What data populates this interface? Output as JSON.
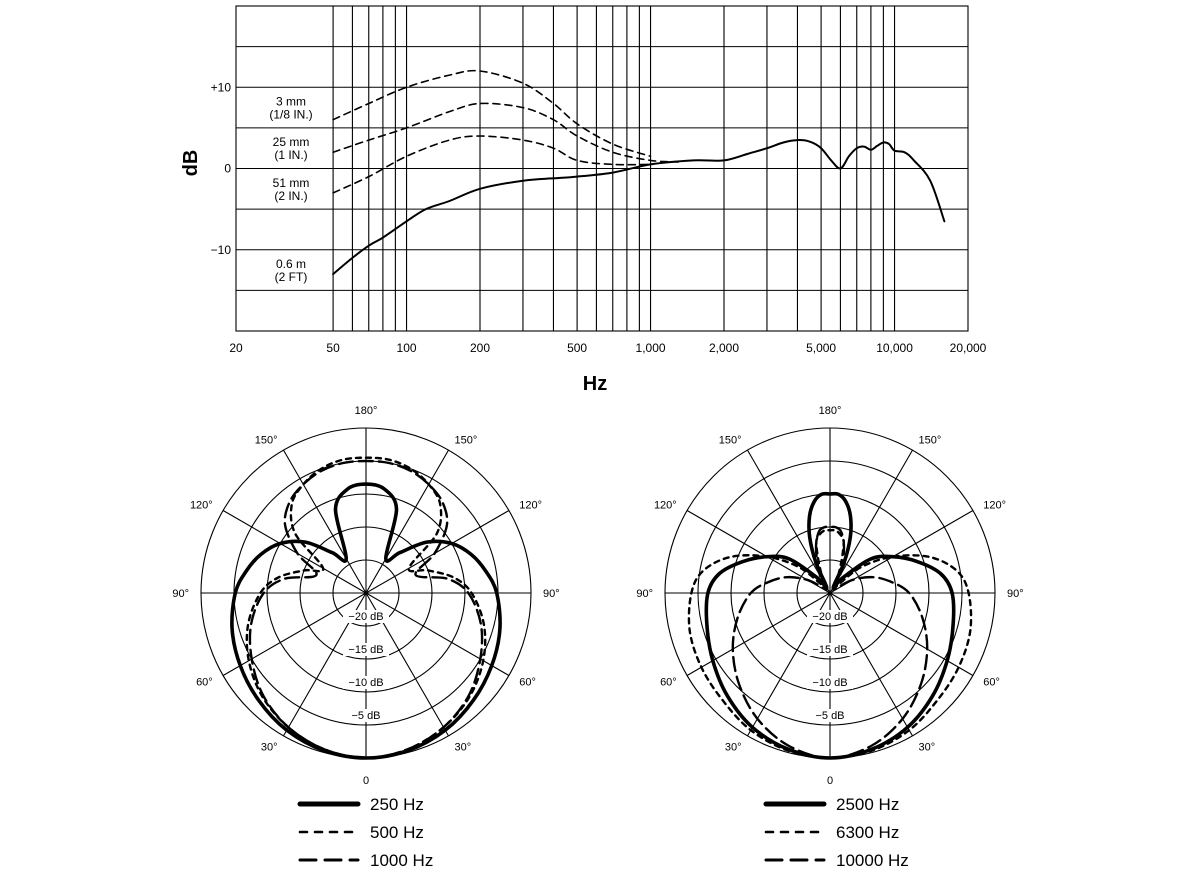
{
  "chart_data": [
    {
      "type": "line",
      "xlabel": "Hz",
      "ylabel": "dB",
      "x_scale": "log",
      "xlim": [
        20,
        20000
      ],
      "ylim": [
        -20,
        20
      ],
      "x_ticks": [
        "20",
        "50",
        "100",
        "200",
        "500",
        "1,000",
        "2,000",
        "5,000",
        "10,000",
        "20,000"
      ],
      "x_tick_values": [
        20,
        50,
        100,
        200,
        500,
        1000,
        2000,
        5000,
        10000,
        20000
      ],
      "y_ticks": [
        {
          "label": "+10",
          "value": 10
        },
        {
          "label": "0",
          "value": 0
        },
        {
          "label": "−10",
          "value": -10
        }
      ],
      "grid": true,
      "annotations": [
        {
          "line1": "3 mm",
          "line2": "(1/8 IN.)",
          "y": 7.5
        },
        {
          "line1": "25 mm",
          "line2": "(1 IN.)",
          "y": 2.5
        },
        {
          "line1": "51 mm",
          "line2": "(2 IN.)",
          "y": -2.5
        },
        {
          "line1": "0.6 m",
          "line2": "(2 FT)",
          "y": -12.5
        }
      ],
      "series": [
        {
          "style": "solid",
          "x": [
            50,
            60,
            70,
            80,
            100,
            120,
            150,
            200,
            300,
            400,
            500,
            700,
            1000,
            1500,
            2000,
            2500,
            3000,
            3500,
            4000,
            4500,
            5000,
            5500,
            6000,
            6500,
            7000,
            7500,
            8000,
            8500,
            9000,
            9500,
            10000,
            11000,
            12000,
            14000,
            16000
          ],
          "y": [
            -13,
            -11,
            -9.5,
            -8.5,
            -6.5,
            -5,
            -4,
            -2.5,
            -1.5,
            -1.2,
            -1,
            -0.5,
            0.5,
            1,
            1,
            1.8,
            2.5,
            3.2,
            3.5,
            3.3,
            2.5,
            1,
            0,
            1.5,
            2.5,
            2.7,
            2.3,
            2.8,
            3.2,
            3,
            2.2,
            2,
            1,
            -1.5,
            -6.5
          ]
        },
        {
          "style": "dashed",
          "x": [
            50,
            70,
            100,
            150,
            200,
            300,
            400,
            500,
            700,
            1000
          ],
          "y": [
            6,
            8,
            10,
            11.5,
            12,
            10.5,
            8,
            5.5,
            3,
            1.5
          ]
        },
        {
          "style": "dashed",
          "x": [
            50,
            70,
            100,
            150,
            200,
            300,
            400,
            500,
            700,
            1000,
            1300
          ],
          "y": [
            2,
            3.5,
            5,
            7,
            8,
            7.5,
            6,
            4,
            2,
            1,
            0.8
          ]
        },
        {
          "style": "dashed",
          "x": [
            50,
            70,
            100,
            150,
            200,
            300,
            400,
            500,
            700,
            1000
          ],
          "y": [
            -3,
            -1,
            1.5,
            3.5,
            4,
            3.5,
            2.5,
            1,
            0.5,
            0.5
          ]
        }
      ]
    },
    {
      "type": "polar",
      "angle_labels": [
        "0",
        "30°",
        "60°",
        "90°",
        "120°",
        "150°",
        "180°",
        "150°",
        "120°",
        "90°",
        "60°",
        "30°"
      ],
      "ring_labels": [
        "−5 dB",
        "−10 dB",
        "−15 dB",
        "−20 dB"
      ],
      "series": [
        {
          "name": "250 Hz",
          "style": "solid-heavy",
          "angles": [
            0,
            15,
            30,
            45,
            60,
            75,
            90,
            100,
            110,
            120,
            130,
            140,
            150,
            160,
            170,
            180
          ],
          "levels": [
            0,
            -0.3,
            -1,
            -2,
            -3,
            -4,
            -5.2,
            -6.5,
            -8,
            -10,
            -13,
            -17,
            -19,
            -11.5,
            -9,
            -8.5
          ]
        },
        {
          "name": "500 Hz",
          "style": "dotted",
          "angles": [
            0,
            15,
            30,
            45,
            60,
            75,
            90,
            100,
            110,
            120,
            130,
            140,
            150,
            160,
            170,
            180
          ],
          "levels": [
            0,
            -0.5,
            -1.5,
            -2.8,
            -4.5,
            -6.5,
            -9,
            -11.5,
            -15,
            -17.5,
            -11,
            -7.5,
            -6,
            -5,
            -4.5,
            -4.5
          ]
        },
        {
          "name": "1000 Hz",
          "style": "long-dash",
          "angles": [
            0,
            15,
            30,
            45,
            60,
            75,
            90,
            100,
            110,
            120,
            130,
            140,
            150,
            160,
            170,
            180
          ],
          "levels": [
            0,
            -0.5,
            -1.5,
            -3,
            -5,
            -7,
            -9.5,
            -12.5,
            -17,
            -13,
            -9,
            -7,
            -6,
            -5.3,
            -5,
            -5
          ]
        }
      ]
    },
    {
      "type": "polar",
      "angle_labels": [
        "0",
        "30°",
        "60°",
        "90°",
        "120°",
        "150°",
        "180°",
        "150°",
        "120°",
        "90°",
        "60°",
        "30°"
      ],
      "ring_labels": [
        "−5 dB",
        "−10 dB",
        "−15 dB",
        "−20 dB"
      ],
      "series": [
        {
          "name": "2500 Hz",
          "style": "solid-heavy",
          "angles": [
            0,
            15,
            30,
            45,
            60,
            75,
            90,
            100,
            110,
            120,
            130,
            140,
            150,
            155,
            160,
            165,
            170,
            175,
            180
          ],
          "levels": [
            0,
            -0.5,
            -1.5,
            -3,
            -4.5,
            -5.7,
            -6.5,
            -8,
            -11,
            -14,
            -17,
            -22,
            -24,
            -20,
            -16,
            -13,
            -11,
            -10,
            -10
          ]
        },
        {
          "name": "6300 Hz",
          "style": "dotted",
          "angles": [
            0,
            15,
            30,
            45,
            60,
            75,
            90,
            100,
            110,
            120,
            130,
            140,
            150,
            160,
            165,
            170,
            175,
            180
          ],
          "levels": [
            0,
            -0.3,
            -1,
            -2,
            -2.5,
            -3,
            -4,
            -5.5,
            -9,
            -14,
            -19,
            -24,
            -23,
            -20,
            -17,
            -16,
            -15.5,
            -15.5
          ]
        },
        {
          "name": "10000 Hz",
          "style": "long-dash",
          "angles": [
            0,
            15,
            30,
            45,
            60,
            75,
            90,
            100,
            110,
            120,
            130,
            140,
            150,
            160,
            165,
            170,
            175,
            180
          ],
          "levels": [
            0,
            -1,
            -3,
            -5.5,
            -8,
            -10.5,
            -13,
            -15.5,
            -18,
            -21,
            -24,
            -24,
            -22,
            -19,
            -17,
            -15.5,
            -15,
            -15
          ]
        }
      ]
    }
  ]
}
